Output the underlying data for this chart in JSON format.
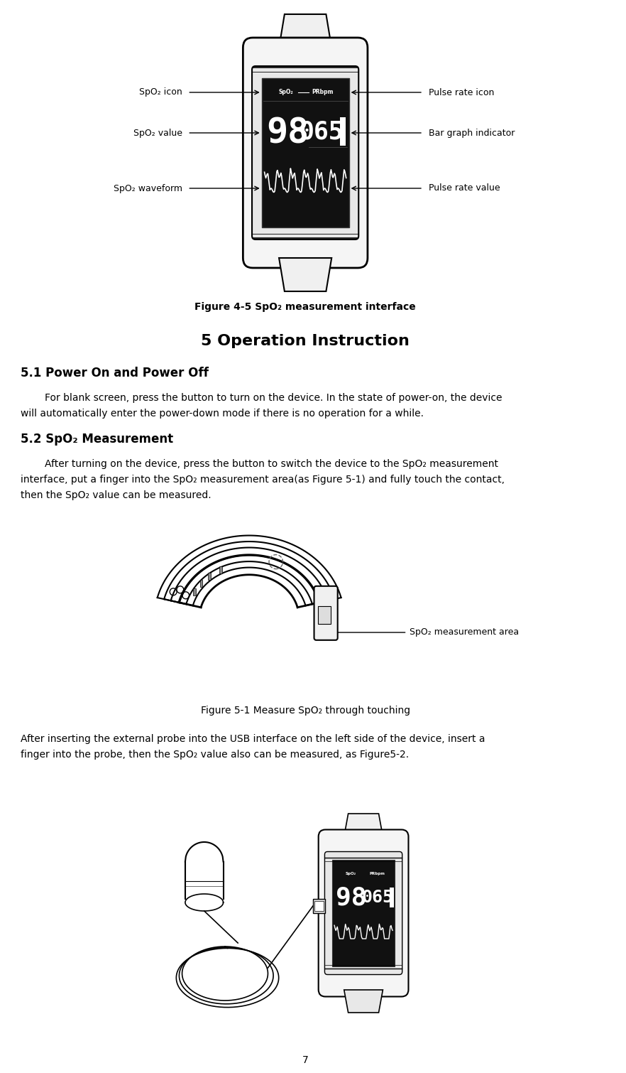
{
  "bg_color": "#ffffff",
  "text_color": "#000000",
  "fig_width": 8.82,
  "fig_height": 15.1,
  "fig_caption_1": "Figure 4-5 SpO₂ measurement interface",
  "section_title": "5 Operation Instruction",
  "sec51_title": "5.1 Power On and Power Off",
  "sec51_body_line1": "For blank screen, press the button to turn on the device. In the state of power-on, the device",
  "sec51_body_line2": "will automatically enter the power-down mode if there is no operation for a while.",
  "sec52_title": "5.2 SpO₂ Measurement",
  "sec52_body1_line1": "After turning on the device, press the button to switch the device to the SpO₂ measurement",
  "sec52_body1_line2": "interface, put a finger into the SpO₂ measurement area(as Figure 5-1) and fully touch the contact,",
  "sec52_body1_line3": "then the SpO₂ value can be measured.",
  "fig_caption_2": "Figure 5-1 Measure SpO₂ through touching",
  "sec52_body2_line1": "After inserting the external probe into the USB interface on the left side of the device, insert a",
  "sec52_body2_line2": "finger into the probe, then the SpO₂ value also can be measured, as Figure5-2.",
  "page_number": "7",
  "label_spo2_icon": "SpO₂ icon",
  "label_spo2_value": "SpO₂ value",
  "label_spo2_waveform": "SpO₂ waveform",
  "label_pulse_icon": "Pulse rate icon",
  "label_bar_graph": "Bar graph indicator",
  "label_pulse_value": "Pulse rate value",
  "label_spo2_area": "SpO₂ measurement area"
}
